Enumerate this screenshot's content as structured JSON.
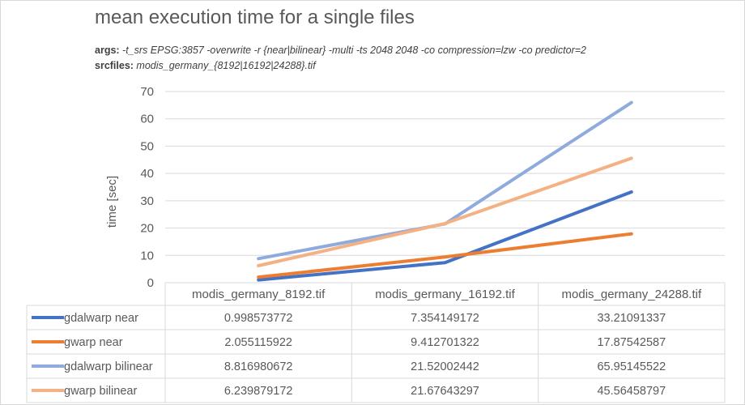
{
  "chart_data": {
    "type": "line",
    "title": "mean execution time for a single files",
    "subtitle": {
      "args_key": "args:",
      "args_value": " -t_srs EPSG:3857 -overwrite -r {near|bilinear} -multi -ts 2048 2048 -co compression=lzw -co predictor=2",
      "srcfiles_key": "srcfiles:",
      "srcfiles_value": " modis_germany_{8192|16192|24288}.tif"
    },
    "ylabel": "time [sec]",
    "xlabel": "",
    "ylim": [
      0,
      70
    ],
    "yticks": [
      0,
      10,
      20,
      30,
      40,
      50,
      60,
      70
    ],
    "grid": true,
    "legend": "data-table",
    "categories": [
      "modis_germany_8192.tif",
      "modis_germany_16192.tif",
      "modis_germany_24288.tif"
    ],
    "series": [
      {
        "name": "gdalwarp near",
        "color": "#4472c4",
        "values": [
          0.998573772,
          7.354149172,
          33.21091337
        ],
        "labels": [
          "0.998573772",
          "7.354149172",
          "33.21091337"
        ]
      },
      {
        "name": "gwarp near",
        "color": "#ed7d31",
        "values": [
          2.055115922,
          9.412701322,
          17.87542587
        ],
        "labels": [
          "2.055115922",
          "9.412701322",
          "17.87542587"
        ]
      },
      {
        "name": "gdalwarp bilinear",
        "color": "#8faadc",
        "values": [
          8.816980672,
          21.52002442,
          65.95145522
        ],
        "labels": [
          "8.816980672",
          "21.52002442",
          "65.95145522"
        ]
      },
      {
        "name": "gwarp bilinear",
        "color": "#f4b183",
        "values": [
          6.239879172,
          21.67643297,
          45.56458797
        ],
        "labels": [
          "6.239879172",
          "21.67643297",
          "45.56458797"
        ]
      }
    ]
  }
}
